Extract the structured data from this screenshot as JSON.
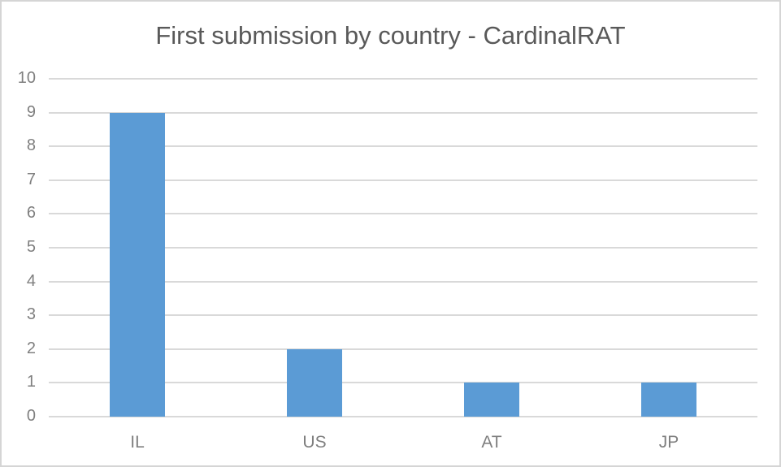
{
  "chart_data": {
    "type": "bar",
    "title": "First submission by country - CardinalRAT",
    "categories": [
      "IL",
      "US",
      "AT",
      "JP"
    ],
    "values": [
      9,
      2,
      1,
      1
    ],
    "xlabel": "",
    "ylabel": "",
    "ylim": [
      0,
      10
    ],
    "ytick_step": 1,
    "yticks": [
      0,
      1,
      2,
      3,
      4,
      5,
      6,
      7,
      8,
      9,
      10
    ],
    "grid": true,
    "legend": "none",
    "colors": {
      "bar": "#5b9bd5",
      "gridline": "#d9d9d9",
      "title_text": "#595959",
      "tick_text": "#7f7f7f",
      "frame_border": "#d5d5d5",
      "background": "#ffffff"
    }
  }
}
